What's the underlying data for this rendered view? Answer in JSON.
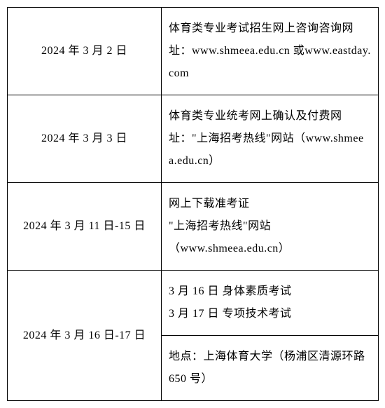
{
  "rows": [
    {
      "date": "2024 年 3 月 2 日",
      "content": "体育类专业考试招生网上咨询咨询网址：www.shmeea.edu.cn 或www.eastday.com"
    },
    {
      "date": "2024 年 3 月 3 日",
      "content": "体育类专业统考网上确认及付费网址：\"上海招考热线\"网站（www.shmeea.edu.cn）"
    },
    {
      "date": "2024 年 3 月 11 日-15 日",
      "content": "网上下载准考证\n\"上海招考热线\"网站\n（www.shmeea.edu.cn）"
    },
    {
      "date": "2024 年 3 月 16 日-17 日",
      "content1": "3 月 16 日 身体素质考试\n3 月 17 日 专项技术考试",
      "content2": "地点：上海体育大学（杨浦区清源环路 650 号）"
    }
  ],
  "style": {
    "background_color": "#ffffff",
    "border_color": "#000000",
    "text_color": "#000000",
    "font_size": 16,
    "font_family": "SimSun",
    "date_col_width": 220,
    "content_col_width": 310,
    "line_height": 2.0
  }
}
